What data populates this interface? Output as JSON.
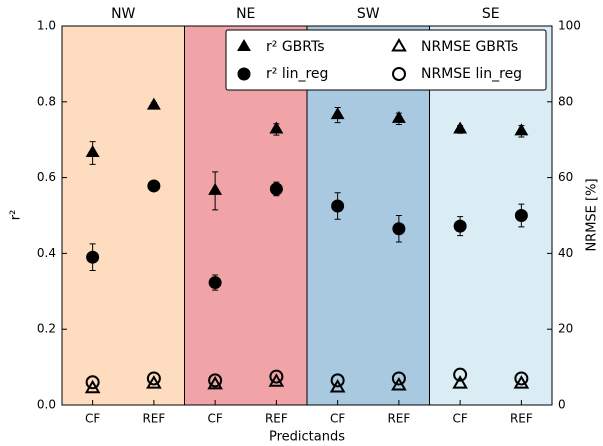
{
  "chart_data": {
    "type": "scatter",
    "xlabel": "Predictands",
    "ylabel": "r²",
    "y2label": "NRMSE [%]",
    "categories": [
      "CF",
      "REF",
      "CF",
      "REF",
      "CF",
      "REF",
      "CF",
      "REF"
    ],
    "groups": [
      "NW",
      "NE",
      "SW",
      "SE"
    ],
    "group_colors": [
      "#fddcbf",
      "#f0a4a7",
      "#a9c9e0",
      "#daedf5"
    ],
    "ylim": [
      0,
      1
    ],
    "yticks": [
      {
        "value": 0,
        "label": "0.0"
      },
      0.2,
      0.4,
      0.6,
      0.8,
      {
        "value": 1,
        "label": "1.0"
      }
    ],
    "y2lim": [
      0,
      100
    ],
    "y2ticks": [
      0,
      20,
      40,
      60,
      80,
      100
    ],
    "legend": "upper right",
    "series": [
      {
        "name": "r² GBRTs",
        "marker": "triangle",
        "filled": true,
        "color": "#000000",
        "axis": "y",
        "values": [
          0.665,
          0.79,
          0.565,
          0.727,
          0.765,
          0.755,
          0.727,
          0.722
        ],
        "errors": [
          0.03,
          0.008,
          0.05,
          0.015,
          0.02,
          0.015,
          0.01,
          0.015
        ]
      },
      {
        "name": "r² lin_reg",
        "marker": "circle",
        "filled": true,
        "color": "#000000",
        "axis": "y",
        "values": [
          0.39,
          0.578,
          0.323,
          0.57,
          0.525,
          0.465,
          0.472,
          0.5
        ],
        "errors": [
          0.035,
          0.005,
          0.02,
          0.018,
          0.035,
          0.035,
          0.025,
          0.03
        ]
      },
      {
        "name": "NRMSE GBRTs",
        "marker": "triangle",
        "filled": false,
        "color": "#000000",
        "axis": "y2",
        "values": [
          4.3,
          5.5,
          5.3,
          6,
          4.5,
          5,
          5.5,
          5.5
        ]
      },
      {
        "name": "NRMSE lin_reg",
        "marker": "circle",
        "filled": false,
        "color": "#000000",
        "axis": "y2",
        "values": [
          6,
          7,
          6.5,
          7.5,
          6.5,
          7,
          8,
          7
        ]
      }
    ]
  }
}
